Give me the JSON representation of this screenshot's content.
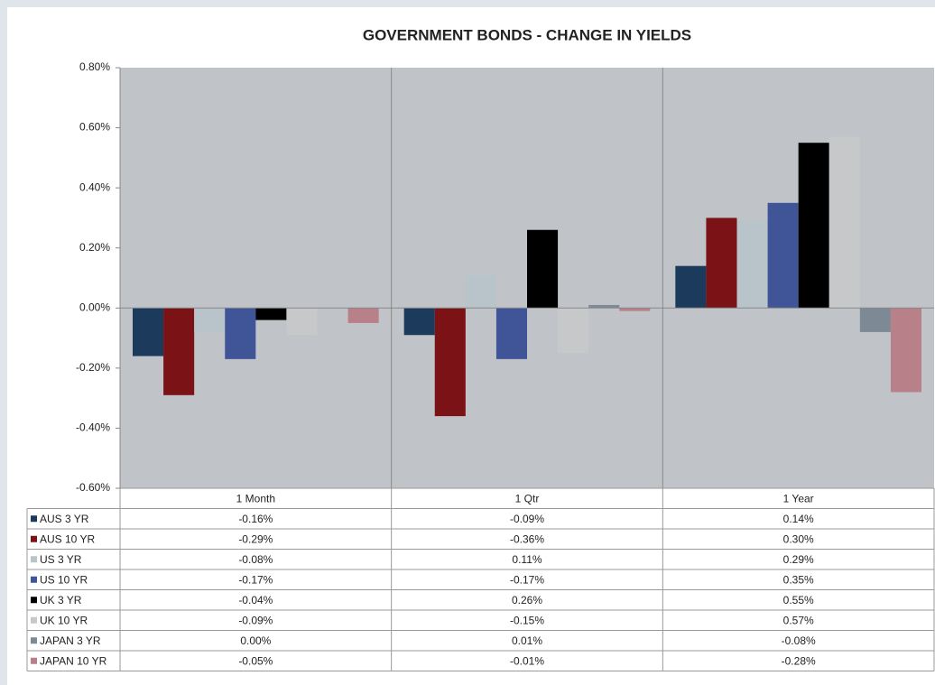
{
  "chart_data": {
    "type": "bar",
    "title": "GOVERNMENT BONDS - CHANGE IN YIELDS",
    "categories": [
      "1 Month",
      "1 Qtr",
      "1 Year"
    ],
    "series": [
      {
        "name": "AUS 3 YR",
        "color": "#1b3a5c",
        "values": [
          -0.16,
          -0.09,
          0.14
        ],
        "value_labels": [
          "-0.16%",
          "-0.09%",
          "0.14%"
        ]
      },
      {
        "name": "AUS 10 YR",
        "color": "#7b1215",
        "values": [
          -0.29,
          -0.36,
          0.3
        ],
        "value_labels": [
          "-0.29%",
          "-0.36%",
          "0.30%"
        ]
      },
      {
        "name": "US 3 YR",
        "color": "#b9c3ca",
        "values": [
          -0.08,
          0.11,
          0.29
        ],
        "value_labels": [
          "-0.08%",
          "0.11%",
          "0.29%"
        ]
      },
      {
        "name": "US 10 YR",
        "color": "#3f5598",
        "values": [
          -0.17,
          -0.17,
          0.35
        ],
        "value_labels": [
          "-0.17%",
          "-0.17%",
          "0.35%"
        ]
      },
      {
        "name": "UK 3 YR",
        "color": "#000000",
        "values": [
          -0.04,
          0.26,
          0.55
        ],
        "value_labels": [
          "-0.04%",
          "0.26%",
          "0.55%"
        ]
      },
      {
        "name": "UK 10 YR",
        "color": "#c6c8ca",
        "values": [
          -0.09,
          -0.15,
          0.57
        ],
        "value_labels": [
          "-0.09%",
          "-0.15%",
          "0.57%"
        ]
      },
      {
        "name": "JAPAN 3 YR",
        "color": "#7e8996",
        "values": [
          0.0,
          0.01,
          -0.08
        ],
        "value_labels": [
          "0.00%",
          "0.01%",
          "-0.08%"
        ]
      },
      {
        "name": "JAPAN 10 YR",
        "color": "#b88189",
        "values": [
          -0.05,
          -0.01,
          -0.28
        ],
        "value_labels": [
          "-0.05%",
          "-0.01%",
          "-0.28%"
        ]
      }
    ],
    "ylim": [
      -0.6,
      0.8
    ],
    "yticks": [
      {
        "value": -0.6,
        "label": "-0.60%"
      },
      {
        "value": -0.4,
        "label": "-0.40%"
      },
      {
        "value": -0.2,
        "label": "-0.20%"
      },
      {
        "value": 0,
        "label": "0.00%"
      },
      {
        "value": 0.2,
        "label": "0.20%"
      },
      {
        "value": 0.4,
        "label": "0.40%"
      },
      {
        "value": 0.6,
        "label": "0.60%"
      },
      {
        "value": 0.8,
        "label": "0.80%"
      }
    ]
  }
}
